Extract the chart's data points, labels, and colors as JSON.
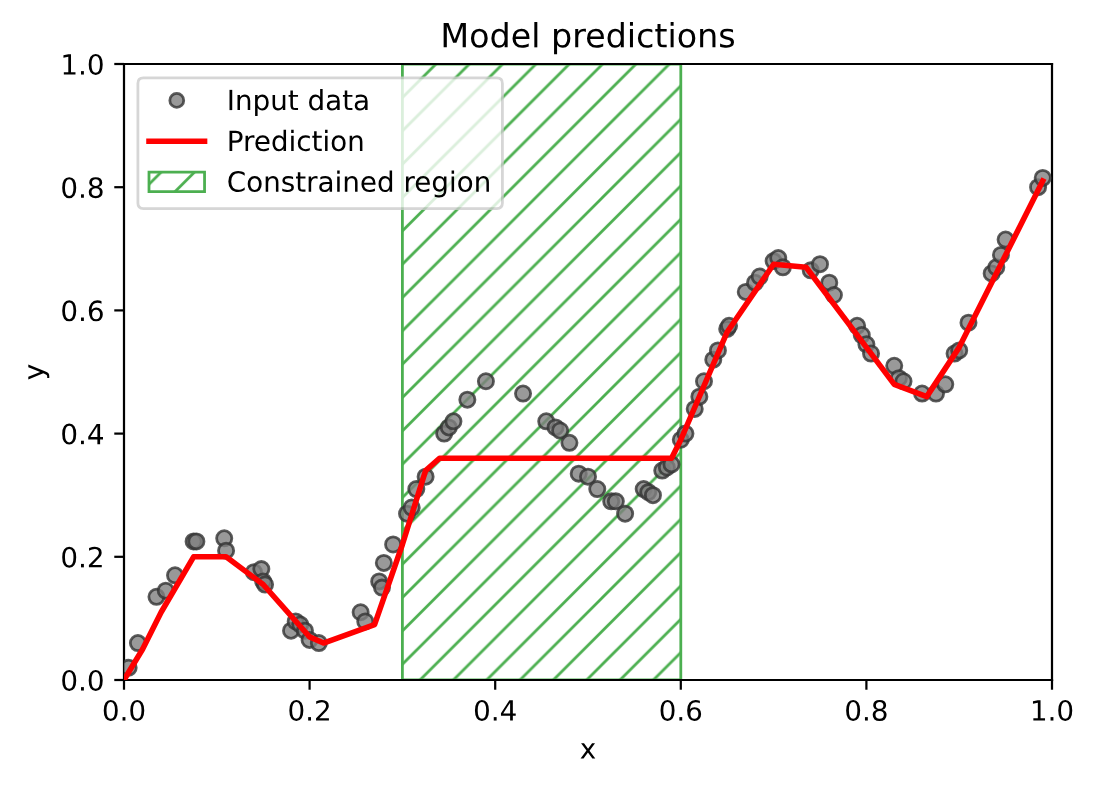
{
  "chart_data": {
    "type": "scatter",
    "title": "Model predictions",
    "xlabel": "x",
    "ylabel": "y",
    "xlim": [
      0,
      1
    ],
    "ylim": [
      0,
      1
    ],
    "xticks": [
      {
        "value": 0,
        "label": "0.0"
      },
      0.2,
      0.4,
      0.6,
      0.8,
      {
        "value": 1,
        "label": "1.0"
      }
    ],
    "yticks": [
      {
        "value": 0,
        "label": "0.0"
      },
      0.2,
      0.4,
      0.6,
      0.8,
      {
        "value": 1,
        "label": "1.0"
      }
    ],
    "grid": false,
    "legend": "top left",
    "bands": [
      {
        "axis": "x",
        "from": 0.3,
        "to": 0.6,
        "label": "Constrained region",
        "color": "#4caf50"
      }
    ],
    "series": [
      {
        "name": "Input data",
        "color": "#808080",
        "marker": "circle",
        "x": [
          0.005,
          0.015,
          0.035,
          0.045,
          0.055,
          0.075,
          0.078,
          0.108,
          0.11,
          0.14,
          0.148,
          0.15,
          0.152,
          0.18,
          0.185,
          0.19,
          0.195,
          0.2,
          0.21,
          0.255,
          0.26,
          0.275,
          0.278,
          0.28,
          0.29,
          0.305,
          0.31,
          0.315,
          0.325,
          0.345,
          0.35,
          0.355,
          0.37,
          0.39,
          0.43,
          0.455,
          0.465,
          0.47,
          0.48,
          0.49,
          0.5,
          0.51,
          0.525,
          0.53,
          0.54,
          0.56,
          0.565,
          0.57,
          0.58,
          0.585,
          0.59,
          0.6,
          0.605,
          0.615,
          0.62,
          0.625,
          0.635,
          0.64,
          0.65,
          0.652,
          0.67,
          0.68,
          0.685,
          0.7,
          0.705,
          0.71,
          0.74,
          0.75,
          0.76,
          0.765,
          0.79,
          0.795,
          0.8,
          0.805,
          0.83,
          0.835,
          0.84,
          0.86,
          0.875,
          0.885,
          0.895,
          0.9,
          0.91,
          0.935,
          0.94,
          0.945,
          0.95,
          0.985,
          0.99
        ],
        "values": [
          0.02,
          0.06,
          0.135,
          0.145,
          0.17,
          0.225,
          0.225,
          0.23,
          0.21,
          0.175,
          0.18,
          0.16,
          0.155,
          0.08,
          0.095,
          0.09,
          0.08,
          0.065,
          0.06,
          0.11,
          0.095,
          0.16,
          0.15,
          0.19,
          0.22,
          0.27,
          0.28,
          0.31,
          0.33,
          0.4,
          0.41,
          0.42,
          0.455,
          0.485,
          0.465,
          0.42,
          0.41,
          0.405,
          0.385,
          0.335,
          0.33,
          0.31,
          0.29,
          0.29,
          0.27,
          0.31,
          0.305,
          0.3,
          0.34,
          0.345,
          0.35,
          0.39,
          0.4,
          0.44,
          0.46,
          0.485,
          0.52,
          0.535,
          0.57,
          0.575,
          0.63,
          0.645,
          0.655,
          0.68,
          0.685,
          0.67,
          0.665,
          0.675,
          0.645,
          0.625,
          0.575,
          0.56,
          0.545,
          0.53,
          0.51,
          0.49,
          0.485,
          0.465,
          0.465,
          0.48,
          0.53,
          0.535,
          0.58,
          0.66,
          0.67,
          0.69,
          0.715,
          0.8,
          0.815
        ]
      },
      {
        "name": "Prediction",
        "type": "line",
        "color": "#ff0000",
        "line_style": "solid",
        "x": [
          0,
          0.02,
          0.04,
          0.075,
          0.11,
          0.15,
          0.2,
          0.215,
          0.27,
          0.3,
          0.325,
          0.34,
          0.59,
          0.6,
          0.65,
          0.7,
          0.735,
          0.8,
          0.83,
          0.865,
          0.9,
          0.99
        ],
        "values": [
          0,
          0.05,
          0.11,
          0.2,
          0.2,
          0.155,
          0.07,
          0.06,
          0.09,
          0.22,
          0.34,
          0.36,
          0.36,
          0.39,
          0.565,
          0.675,
          0.67,
          0.54,
          0.48,
          0.46,
          0.54,
          0.81
        ]
      }
    ]
  }
}
